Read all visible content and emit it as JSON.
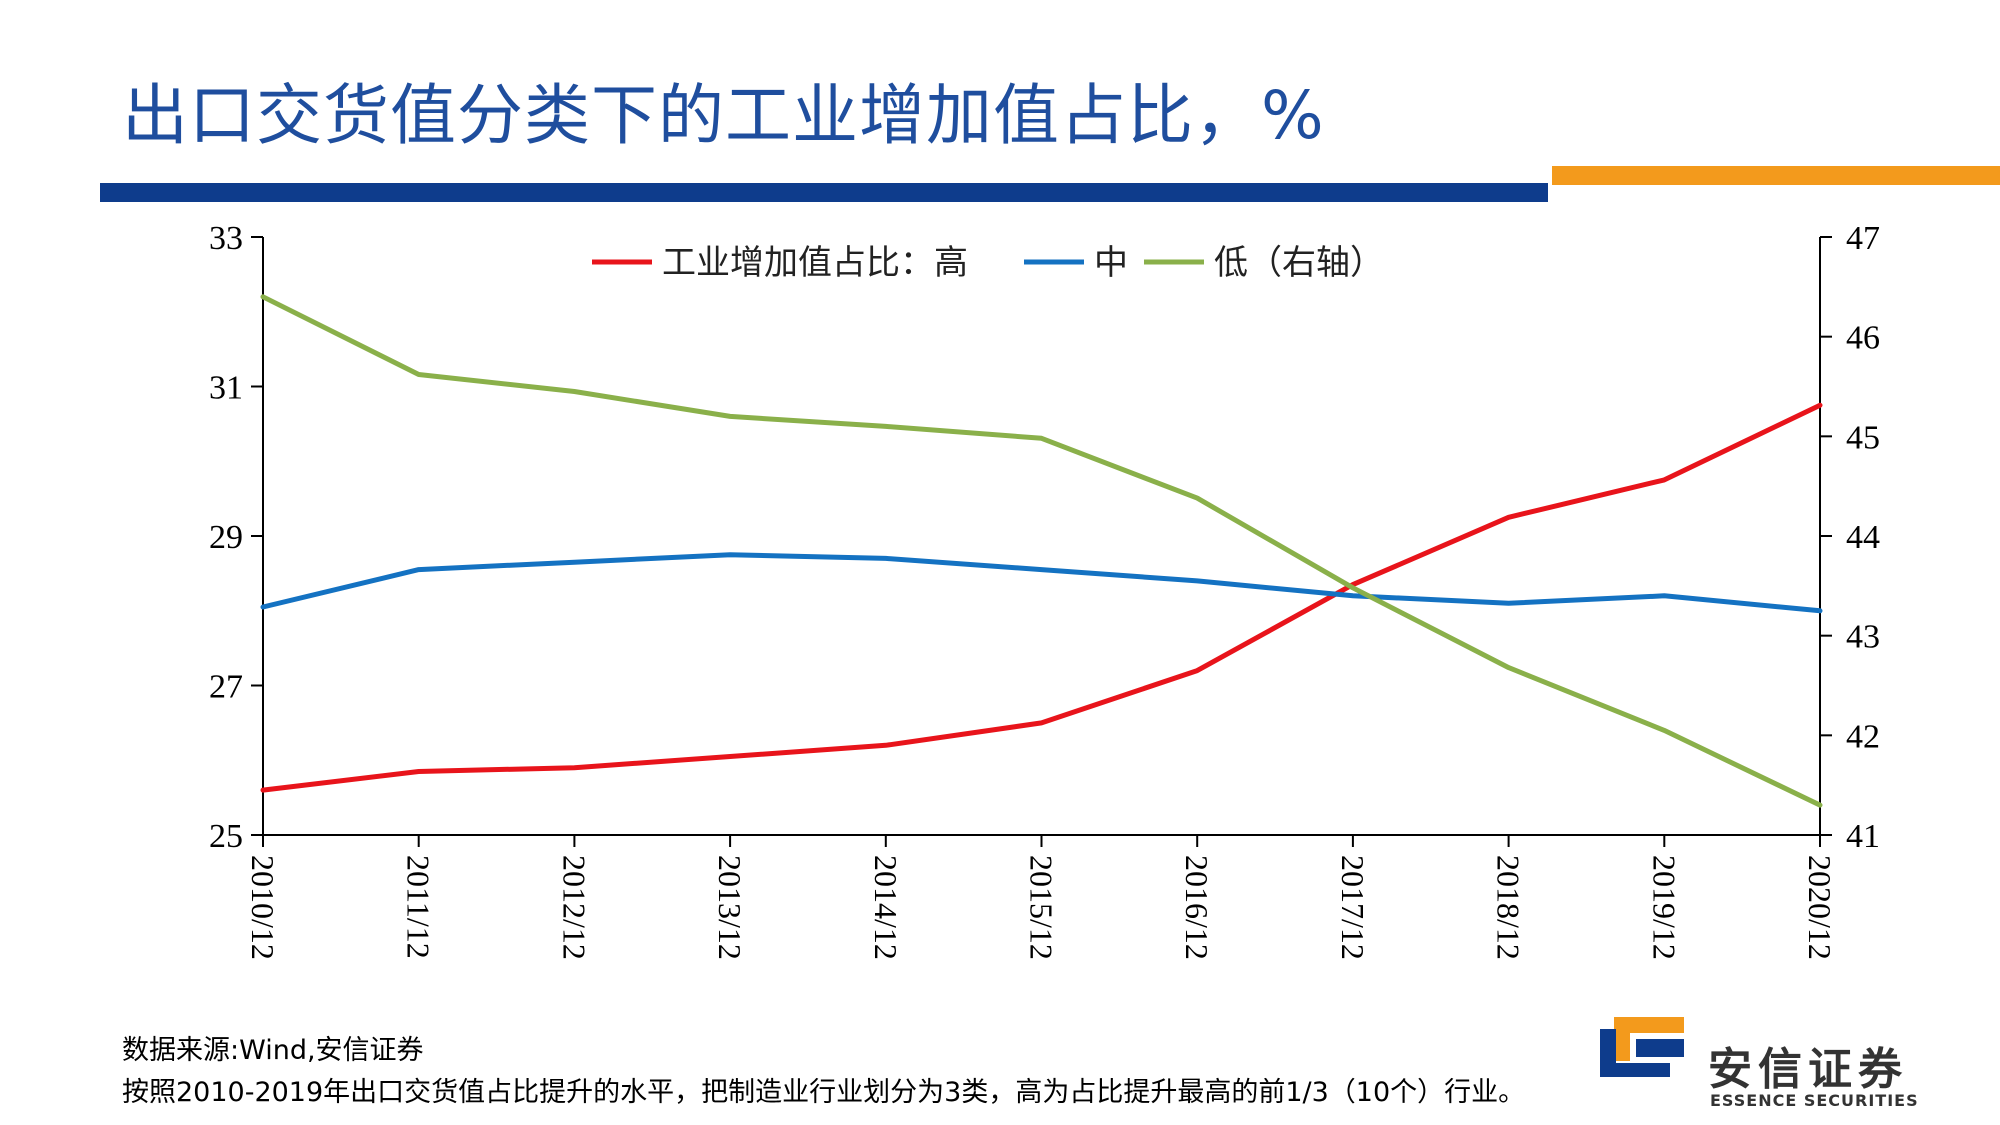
{
  "page": {
    "title": "出口交货值分类下的工业增加值占比，%",
    "footnote_source": "数据来源:Wind,安信证券",
    "footnote_note": "按照2010-2019年出口交货值占比提升的水平，把制造业行业划分为3类，高为占比提升最高的前1/3（10个）行业。",
    "logo_cn": "安信证券",
    "logo_en": "ESSENCE SECURITIES"
  },
  "colors": {
    "title": "#1f4e9e",
    "bar_blue": "#0e3c8c",
    "bar_orange": "#f39a1c",
    "high": "#e8141b",
    "mid": "#1472c2",
    "low": "#8ab04a"
  },
  "chart_data": {
    "type": "line",
    "title": "",
    "x": [
      "2010/12",
      "2011/12",
      "2012/12",
      "2013/12",
      "2014/12",
      "2015/12",
      "2016/12",
      "2017/12",
      "2018/12",
      "2019/12",
      "2020/12"
    ],
    "ylim": [
      25,
      33
    ],
    "yticks": [
      25,
      27,
      29,
      31,
      33
    ],
    "y2lim": [
      41,
      47
    ],
    "y2ticks": [
      41,
      42,
      43,
      44,
      45,
      46,
      47
    ],
    "grid": false,
    "legend_position": "top-center",
    "legend": {
      "prefix": "工业增加值占比：",
      "entries": [
        "高",
        "中",
        "低（右轴）"
      ]
    },
    "series": [
      {
        "name": "高",
        "axis": "left",
        "color": "#e8141b",
        "values": [
          25.6,
          25.85,
          25.9,
          26.05,
          26.2,
          26.5,
          27.2,
          28.35,
          29.25,
          29.75,
          30.75
        ]
      },
      {
        "name": "中",
        "axis": "left",
        "color": "#1472c2",
        "values": [
          28.05,
          28.55,
          28.65,
          28.75,
          28.7,
          28.55,
          28.4,
          28.2,
          28.1,
          28.2,
          28.0
        ]
      },
      {
        "name": "低（右轴）",
        "axis": "right",
        "color": "#8ab04a",
        "values": [
          46.4,
          45.62,
          45.45,
          45.2,
          45.1,
          44.98,
          44.38,
          43.48,
          42.68,
          42.05,
          41.3
        ]
      }
    ]
  }
}
